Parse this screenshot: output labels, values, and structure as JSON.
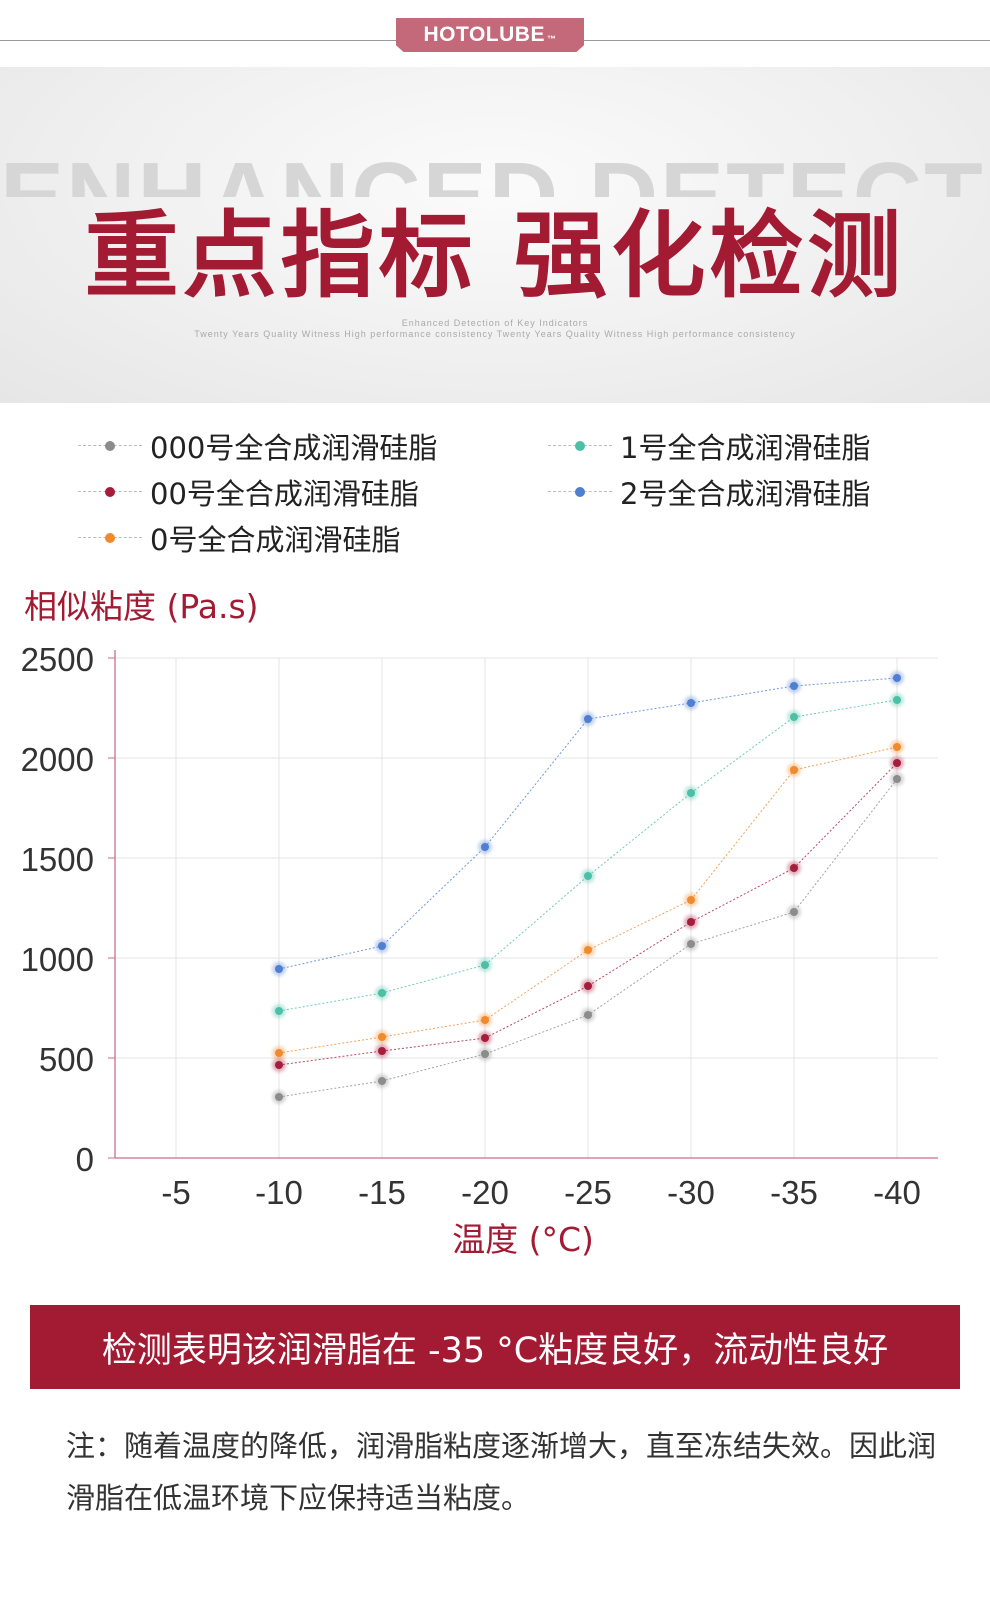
{
  "header": {
    "logo_text": "HOTOLUBE",
    "trademark": "™"
  },
  "banner": {
    "english_title": "ENHANCED DETECTION",
    "title": "重点指标 强化检测",
    "subtitle_line1": "Enhanced Detection of Key Indicators",
    "subtitle_line2": "Twenty Years Quality Witness High performance consistency Twenty Years Quality Witness High performance consistency"
  },
  "colors": {
    "brand": "#a31a33",
    "axis": "#c7708a",
    "series_000": "#8c8c8c",
    "series_00": "#a61c3c",
    "series_0": "#f08a2c",
    "series_1": "#4cc0a6",
    "series_2": "#4f7fd0"
  },
  "chart_data": {
    "type": "line",
    "ylabel": "相似粘度 (Pa.s)",
    "xlabel": "温度 (°C)",
    "categories": [
      "-5",
      "-10",
      "-15",
      "-20",
      "-25",
      "-30",
      "-35",
      "-40"
    ],
    "ylim": [
      0,
      2500
    ],
    "yticks": [
      "0",
      "500",
      "1000",
      "1500",
      "2000",
      "2500"
    ],
    "grid": true,
    "legend_position": "top",
    "series": [
      {
        "name": "000号全合成润滑硅脂",
        "color": "#8c8c8c",
        "values": [
          null,
          305,
          385,
          520,
          715,
          1070,
          1230,
          1895
        ]
      },
      {
        "name": "00号全合成润滑硅脂",
        "color": "#a61c3c",
        "values": [
          null,
          465,
          535,
          600,
          860,
          1180,
          1450,
          1975
        ]
      },
      {
        "name": "0号全合成润滑硅脂",
        "color": "#f08a2c",
        "values": [
          null,
          525,
          605,
          690,
          1040,
          1290,
          1940,
          2055
        ]
      },
      {
        "name": "1号全合成润滑硅脂",
        "color": "#4cc0a6",
        "values": [
          null,
          735,
          825,
          965,
          1410,
          1825,
          2205,
          2290
        ]
      },
      {
        "name": "2号全合成润滑硅脂",
        "color": "#4f7fd0",
        "values": [
          null,
          945,
          1060,
          1555,
          2195,
          2275,
          2360,
          2400
        ]
      }
    ]
  },
  "conclusion": "检测表明该润滑脂在 -35 °C粘度良好，流动性良好",
  "note": "注：随着温度的降低，润滑脂粘度逐渐增大，直至冻结失效。因此润滑脂在低温环境下应保持适当粘度。"
}
